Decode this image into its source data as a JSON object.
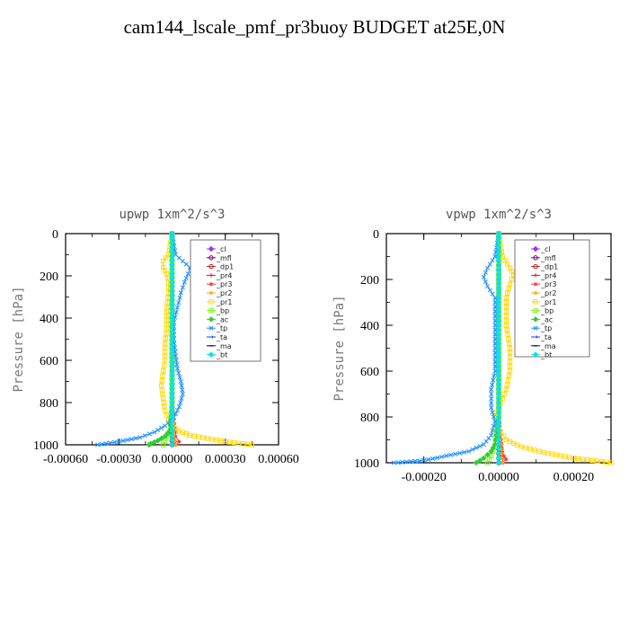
{
  "title": "cam144_lscale_pmf_pr3buoy  BUDGET at25E,0N",
  "chart_data": [
    {
      "type": "line",
      "title": "upwp   1xm^2/s^3",
      "ylabel": "Pressure [hPa]",
      "xlim": [
        -0.0006,
        0.0006
      ],
      "ylim": [
        1000,
        0
      ],
      "xticks": [
        "-0.00060",
        "-0.00030",
        "0.00000",
        "0.00030",
        "0.00060"
      ],
      "xtick_values": [
        -0.0006,
        -0.0003,
        0,
        0.0003,
        0.0006
      ],
      "yticks": [
        "0",
        "200",
        "400",
        "600",
        "800",
        "1000"
      ],
      "ytick_values": [
        0,
        200,
        400,
        600,
        800,
        1000
      ],
      "legend_position": "top-right",
      "series": [
        {
          "name": "_cl",
          "color": "#9b30ff",
          "marker": "diamond",
          "x": [
            0,
            0,
            0,
            0,
            0
          ],
          "y": [
            0,
            250,
            500,
            750,
            1000
          ]
        },
        {
          "name": "_mfl",
          "color": "#800080",
          "marker": "circle",
          "x": [
            0,
            0,
            0,
            0,
            0,
            0
          ],
          "y": [
            0,
            200,
            400,
            600,
            800,
            1000
          ]
        },
        {
          "name": "_dp1",
          "color": "#b22222",
          "marker": "circle",
          "x": [
            0,
            0,
            0,
            0,
            0,
            0,
            0
          ],
          "y": [
            0,
            200,
            400,
            600,
            800,
            960,
            1000
          ]
        },
        {
          "name": "_pr4",
          "color": "#dc143c",
          "marker": "plus",
          "x": [
            0,
            0,
            0,
            1e-05,
            2e-05,
            1e-05
          ],
          "y": [
            0,
            400,
            800,
            960,
            985,
            1000
          ]
        },
        {
          "name": "_pr3",
          "color": "#ff3030",
          "marker": "star",
          "x": [
            0,
            0,
            0,
            2e-05,
            4e-05,
            2e-05
          ],
          "y": [
            0,
            400,
            800,
            960,
            985,
            1000
          ]
        },
        {
          "name": "_pr2",
          "color": "#ffa500",
          "marker": "star",
          "x": [
            0,
            0,
            0,
            1e-05,
            2e-05
          ],
          "y": [
            0,
            400,
            800,
            960,
            1000
          ]
        },
        {
          "name": "_pr1",
          "color": "#ffd700",
          "marker": "square",
          "x": [
            0,
            -2e-05,
            -5e-05,
            -5e-05,
            -3e-05,
            -2e-05,
            -2e-05,
            -3e-05,
            -3e-05,
            -4e-05,
            -4e-05,
            -5e-05,
            -6e-05,
            -5e-05,
            -4e-05,
            -2e-05,
            0.0,
            4e-05,
            0.0001,
            0.0002,
            0.0003,
            0.00045
          ],
          "y": [
            0,
            100,
            130,
            160,
            190,
            230,
            280,
            350,
            450,
            520,
            600,
            650,
            720,
            780,
            840,
            880,
            910,
            935,
            955,
            970,
            985,
            1000
          ]
        },
        {
          "name": "_bp",
          "color": "#7cfc00",
          "marker": "square",
          "x": [
            0,
            0,
            0,
            -1e-05,
            -2e-05,
            -4e-05,
            -5e-05
          ],
          "y": [
            0,
            400,
            800,
            930,
            960,
            985,
            1000
          ]
        },
        {
          "name": "_ac",
          "color": "#32cd32",
          "marker": "diamond",
          "x": [
            0,
            0,
            0,
            -1e-05,
            -4e-05,
            -8e-05,
            -0.00012,
            -0.00013
          ],
          "y": [
            0,
            400,
            800,
            930,
            960,
            980,
            995,
            1000
          ]
        },
        {
          "name": "_tp",
          "color": "#1e90ff",
          "marker": "cross",
          "x": [
            0,
            2e-05,
            6e-05,
            0.0001,
            9e-05,
            7e-05,
            5e-05,
            3e-05,
            1e-05,
            1e-05,
            2e-05,
            3e-05,
            5e-05,
            6e-05,
            4e-05,
            1e-05,
            -4e-05,
            -0.0001,
            -0.00018,
            -0.0003,
            -0.00042
          ],
          "y": [
            0,
            100,
            130,
            160,
            190,
            230,
            280,
            350,
            420,
            500,
            580,
            640,
            700,
            760,
            820,
            870,
            910,
            940,
            965,
            985,
            1000
          ]
        },
        {
          "name": "_ta",
          "color": "#1e3cff",
          "marker": "arrow",
          "x": [
            0,
            0,
            0,
            0
          ],
          "y": [
            0,
            400,
            800,
            1000
          ]
        },
        {
          "name": "_ma",
          "color": "#00008b",
          "marker": "dash",
          "x": [
            0,
            0,
            0,
            0
          ],
          "y": [
            0,
            400,
            800,
            1000
          ]
        },
        {
          "name": "_bt",
          "color": "#00e5ee",
          "marker": "diamond",
          "x": [
            0,
            0,
            0,
            0
          ],
          "y": [
            0,
            400,
            800,
            1000
          ]
        }
      ]
    },
    {
      "type": "line",
      "title": "vpwp   1xm^2/s^3",
      "ylabel": "Pressure [hPa]",
      "xlim": [
        -0.0003,
        0.0003
      ],
      "ylim": [
        1000,
        0
      ],
      "xticks": [
        "-0.00020",
        "0.00000",
        "0.00020"
      ],
      "xtick_values": [
        -0.0002,
        0,
        0.0002
      ],
      "yticks": [
        "0",
        "200",
        "400",
        "600",
        "800",
        "1000"
      ],
      "ytick_values": [
        0,
        200,
        400,
        600,
        800,
        1000
      ],
      "legend_position": "top-right",
      "series": [
        {
          "name": "_cl",
          "color": "#9b30ff",
          "marker": "diamond",
          "x": [
            0,
            0,
            0,
            0,
            0
          ],
          "y": [
            0,
            250,
            500,
            750,
            1000
          ]
        },
        {
          "name": "_mfl",
          "color": "#800080",
          "marker": "circle",
          "x": [
            0,
            0,
            0,
            0,
            0,
            0
          ],
          "y": [
            0,
            200,
            400,
            600,
            800,
            1000
          ]
        },
        {
          "name": "_dp1",
          "color": "#b22222",
          "marker": "circle",
          "x": [
            0,
            0,
            0,
            0,
            0,
            0,
            0
          ],
          "y": [
            0,
            200,
            400,
            600,
            800,
            960,
            1000
          ]
        },
        {
          "name": "_pr4",
          "color": "#dc143c",
          "marker": "plus",
          "x": [
            0,
            0,
            0,
            1e-05,
            1e-05
          ],
          "y": [
            0,
            400,
            800,
            970,
            1000
          ]
        },
        {
          "name": "_pr3",
          "color": "#ff3030",
          "marker": "star",
          "x": [
            0,
            0,
            0,
            1e-05,
            2e-05,
            1e-05
          ],
          "y": [
            0,
            400,
            800,
            960,
            985,
            1000
          ]
        },
        {
          "name": "_pr2",
          "color": "#ffa500",
          "marker": "star",
          "x": [
            0,
            0,
            0,
            1e-05
          ],
          "y": [
            0,
            400,
            800,
            1000
          ]
        },
        {
          "name": "_pr1",
          "color": "#ffd700",
          "marker": "square",
          "x": [
            0,
            1e-05,
            3e-05,
            4e-05,
            3e-05,
            2e-05,
            2e-05,
            3e-05,
            3e-05,
            2e-05,
            0.0,
            -1e-05,
            0.0,
            2e-05,
            6e-05,
            0.00012,
            0.0002,
            0.0003
          ],
          "y": [
            0,
            100,
            150,
            180,
            220,
            280,
            400,
            500,
            600,
            680,
            760,
            800,
            850,
            900,
            930,
            955,
            980,
            1000
          ]
        },
        {
          "name": "_bp",
          "color": "#7cfc00",
          "marker": "square",
          "x": [
            0,
            0,
            0,
            -1e-05,
            -2e-05,
            -3e-05
          ],
          "y": [
            0,
            400,
            800,
            930,
            970,
            1000
          ]
        },
        {
          "name": "_ac",
          "color": "#32cd32",
          "marker": "diamond",
          "x": [
            0,
            0,
            0,
            -1e-05,
            -2e-05,
            -4e-05,
            -6e-05
          ],
          "y": [
            0,
            400,
            800,
            920,
            950,
            980,
            1000
          ]
        },
        {
          "name": "_tp",
          "color": "#1e90ff",
          "marker": "cross",
          "x": [
            0,
            -1e-05,
            -3e-05,
            -4e-05,
            -3e-05,
            -1e-05,
            -1e-05,
            -1e-05,
            -1e-05,
            -2e-05,
            -2e-05,
            -1e-05,
            -2e-05,
            -4e-05,
            -8e-05,
            -0.00014,
            -0.0002,
            -0.00028
          ],
          "y": [
            0,
            100,
            150,
            190,
            230,
            280,
            400,
            500,
            600,
            680,
            760,
            820,
            880,
            920,
            950,
            970,
            990,
            1000
          ]
        },
        {
          "name": "_ta",
          "color": "#1e3cff",
          "marker": "arrow",
          "x": [
            0,
            0,
            0,
            0
          ],
          "y": [
            0,
            400,
            800,
            1000
          ]
        },
        {
          "name": "_ma",
          "color": "#00008b",
          "marker": "dash",
          "x": [
            0,
            0,
            0,
            0
          ],
          "y": [
            0,
            400,
            800,
            1000
          ]
        },
        {
          "name": "_bt",
          "color": "#00e5ee",
          "marker": "diamond",
          "x": [
            0,
            0,
            0,
            0
          ],
          "y": [
            0,
            400,
            800,
            1000
          ]
        }
      ]
    }
  ]
}
